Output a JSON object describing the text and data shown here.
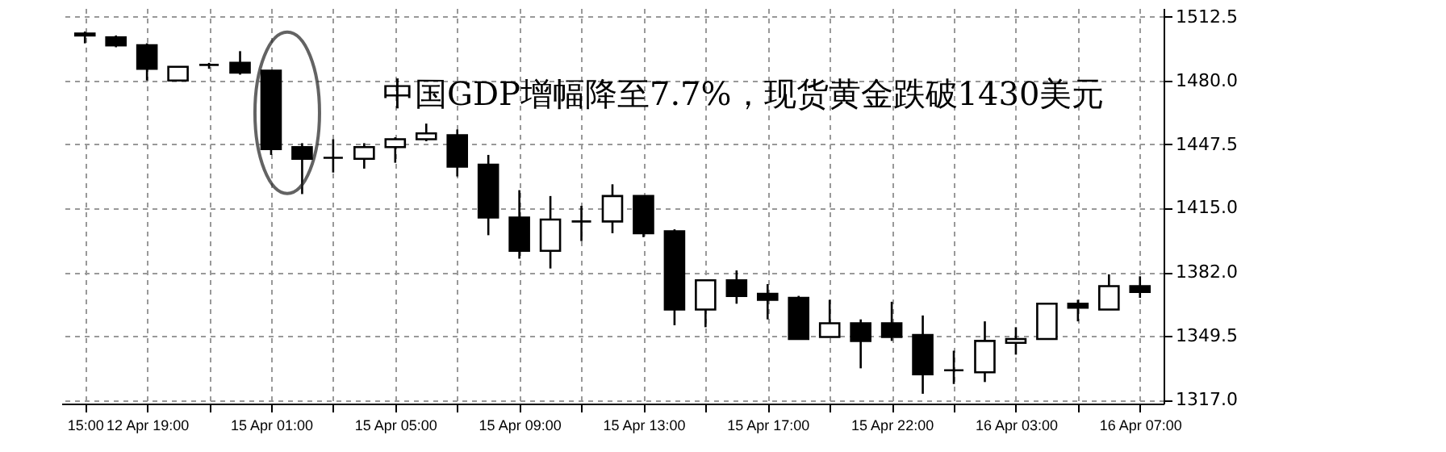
{
  "chart_data": {
    "type": "candlestick",
    "categories": [
      "15:00",
      null,
      "12 Apr 19:00",
      null,
      null,
      null,
      "15 Apr 01:00",
      null,
      null,
      null,
      "15 Apr 05:00",
      null,
      null,
      null,
      "15 Apr 09:00",
      null,
      null,
      null,
      "15 Apr 13:00",
      null,
      null,
      null,
      "15 Apr 17:00",
      null,
      null,
      null,
      "15 Apr 22:00",
      null,
      null,
      null,
      "16 Apr 03:00",
      null,
      null,
      null,
      "16 Apr 07:00"
    ],
    "ohlc": [
      [
        1504,
        1505,
        1499,
        1503
      ],
      [
        1502,
        1503,
        1497,
        1498
      ],
      [
        1498,
        1499,
        1480,
        1486
      ],
      [
        1480,
        1487,
        1480,
        1487
      ],
      [
        1488,
        1489,
        1486,
        1488
      ],
      [
        1489,
        1495,
        1483,
        1484
      ],
      [
        1485,
        1485,
        1442,
        1445
      ],
      [
        1446,
        1448,
        1422,
        1440
      ],
      [
        1440.5,
        1450,
        1433,
        1440.5
      ],
      [
        1440,
        1448,
        1435,
        1446
      ],
      [
        1446,
        1451,
        1438,
        1450
      ],
      [
        1450,
        1458,
        1449,
        1453
      ],
      [
        1452,
        1455,
        1431,
        1436
      ],
      [
        1437,
        1442,
        1401,
        1410
      ],
      [
        1410,
        1424,
        1389,
        1393
      ],
      [
        1393,
        1421,
        1384,
        1409
      ],
      [
        1408,
        1416,
        1398,
        1408
      ],
      [
        1408,
        1427,
        1402,
        1421
      ],
      [
        1421,
        1421,
        1400,
        1402
      ],
      [
        1403,
        1404,
        1355,
        1363
      ],
      [
        1363,
        1378,
        1354,
        1378
      ],
      [
        1378,
        1383,
        1366,
        1370
      ],
      [
        1371,
        1376,
        1358,
        1368
      ],
      [
        1369,
        1370,
        1348,
        1348
      ],
      [
        1349,
        1368,
        1349,
        1356
      ],
      [
        1356,
        1358,
        1333,
        1347
      ],
      [
        1356,
        1367,
        1347,
        1349
      ],
      [
        1350,
        1360,
        1320,
        1330
      ],
      [
        1332,
        1342,
        1325,
        1332
      ],
      [
        1331,
        1357,
        1326,
        1347
      ],
      [
        1346,
        1354,
        1340,
        1348
      ],
      [
        1348,
        1366,
        1348,
        1366
      ],
      [
        1366,
        1368,
        1357,
        1364
      ],
      [
        1363,
        1381,
        1363,
        1375
      ],
      [
        1375,
        1380,
        1369,
        1372
      ]
    ],
    "ylim": [
      1315,
      1517
    ],
    "yticks": [
      {
        "value": 1512.5,
        "label": "1512.5"
      },
      {
        "value": 1480,
        "label": "1480.0"
      },
      {
        "value": 1447.5,
        "label": "1447.5"
      },
      {
        "value": 1415,
        "label": "1415.0"
      },
      {
        "value": 1382,
        "label": "1382.0"
      },
      {
        "value": 1349.5,
        "label": "1349.5"
      },
      {
        "value": 1317,
        "label": "1317.0"
      }
    ],
    "grid": true,
    "annotations": [
      "中国GDP增幅降至7.7%，现货黄金跌破1430美元"
    ]
  }
}
